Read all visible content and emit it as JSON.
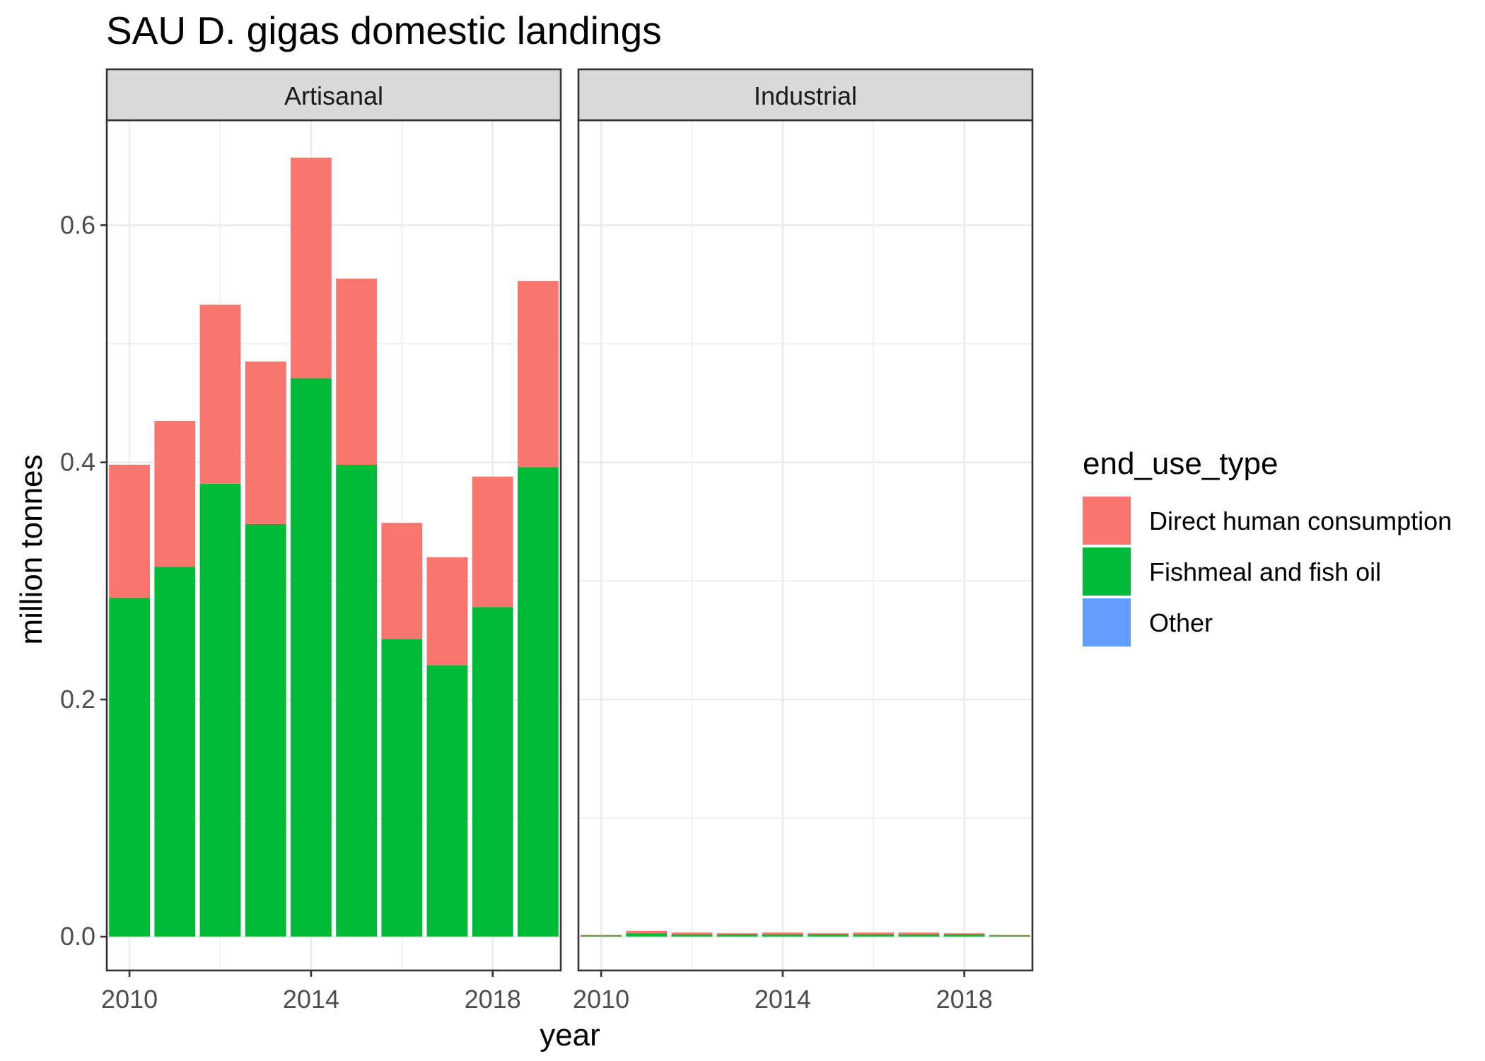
{
  "chart_data": {
    "type": "bar",
    "stacked": true,
    "title": "SAU D. gigas domestic landings",
    "xlabel": "year",
    "ylabel": "million tonnes",
    "xlim": [
      2009.5,
      2019.5
    ],
    "ylim": [
      -0.0285,
      0.6885
    ],
    "x_ticks": [
      2010,
      2014,
      2018
    ],
    "y_ticks": [
      0.0,
      0.2,
      0.4,
      0.6
    ],
    "y_tick_labels": [
      "0.0",
      "0.2",
      "0.4",
      "0.6"
    ],
    "grid": true,
    "legend": {
      "title": "end_use_type",
      "position": "right",
      "entries": [
        "Direct human consumption",
        "Fishmeal and fish oil",
        "Other"
      ]
    },
    "colors": {
      "Direct human consumption": "#F8766D",
      "Fishmeal and fish oil": "#00BA38",
      "Other": "#619CFF"
    },
    "years": [
      2010,
      2011,
      2012,
      2013,
      2014,
      2015,
      2016,
      2017,
      2018,
      2019
    ],
    "facets": [
      {
        "name": "Artisanal",
        "series": [
          {
            "name": "Fishmeal and fish oil",
            "values": [
              0.286,
              0.312,
              0.382,
              0.348,
              0.471,
              0.398,
              0.251,
              0.229,
              0.278,
              0.396
            ]
          },
          {
            "name": "Direct human consumption",
            "values": [
              0.112,
              0.123,
              0.151,
              0.137,
              0.186,
              0.157,
              0.098,
              0.091,
              0.11,
              0.157
            ]
          },
          {
            "name": "Other",
            "values": [
              0,
              0,
              0,
              0,
              0,
              0,
              0,
              0,
              0,
              0
            ]
          }
        ]
      },
      {
        "name": "Industrial",
        "series": [
          {
            "name": "Fishmeal and fish oil",
            "values": [
              0.001,
              0.003,
              0.002,
              0.002,
              0.002,
              0.002,
              0.002,
              0.002,
              0.002,
              0.001
            ]
          },
          {
            "name": "Direct human consumption",
            "values": [
              0.0005,
              0.002,
              0.0015,
              0.001,
              0.0015,
              0.001,
              0.0015,
              0.0015,
              0.001,
              0.0005
            ]
          },
          {
            "name": "Other",
            "values": [
              0,
              0,
              0,
              0,
              0,
              0,
              0,
              0,
              0,
              0
            ]
          }
        ]
      }
    ]
  }
}
